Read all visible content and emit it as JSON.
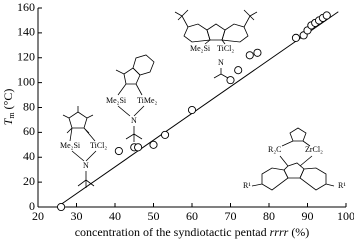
{
  "chart_data": {
    "type": "scatter",
    "x_label": {
      "before": "concentration of the syndiotactic pentad",
      "italic": "rrrr",
      "after": "(%)"
    },
    "y_label": {
      "symbol": "T",
      "subscript": "m",
      "unit": "(°C)"
    },
    "x": [
      26,
      41,
      45,
      46,
      50,
      53,
      60,
      70,
      72,
      75,
      77,
      87,
      89,
      90,
      91,
      92,
      93,
      94,
      95
    ],
    "values": [
      0,
      45,
      48,
      48,
      50,
      58,
      78,
      102,
      110,
      122,
      124,
      136,
      138,
      142,
      146,
      148,
      150,
      152,
      154
    ],
    "fit_line": {
      "x": [
        25,
        98
      ],
      "values": [
        0,
        157
      ]
    },
    "xlim": [
      20,
      100
    ],
    "xticks": [
      20,
      30,
      40,
      50,
      60,
      70,
      80,
      90,
      100
    ],
    "ylim": [
      0,
      160
    ],
    "yticks": [
      0,
      20,
      40,
      60,
      80,
      100,
      120,
      140,
      160
    ],
    "color": "#000000",
    "structures": [
      {
        "labels": [
          "Me₂Si",
          "TiCl₂",
          "N"
        ]
      },
      {
        "labels": [
          "Me₂Si",
          "TiMe₂",
          "N"
        ]
      },
      {
        "labels": [
          "Me₂Si",
          "TiCl₂",
          "N"
        ]
      },
      {
        "labels": [
          "R₂C",
          "ZrCl₂",
          "R¹",
          "R¹"
        ]
      }
    ]
  }
}
